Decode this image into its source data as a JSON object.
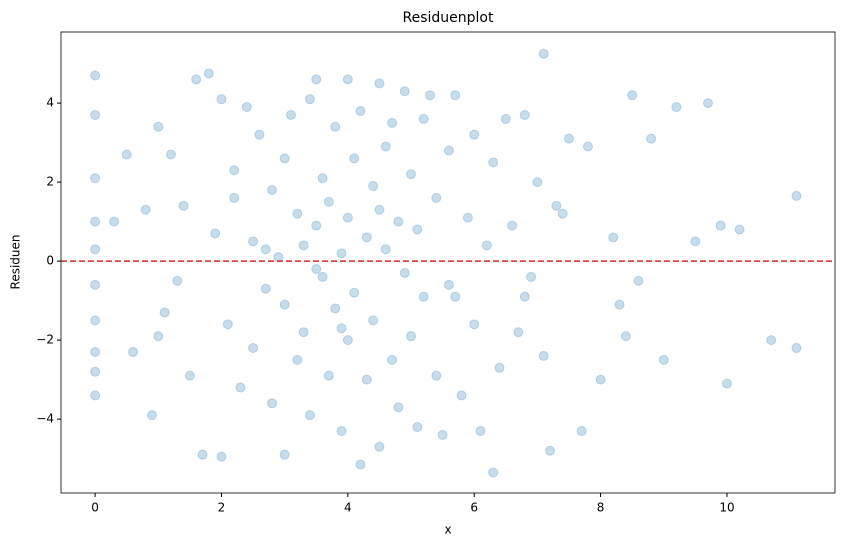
{
  "chart_data": {
    "type": "scatter",
    "title": "Residuenplot",
    "x_label": "x",
    "y_label": "Residuen",
    "x": [
      0,
      0,
      0,
      0,
      0,
      0,
      0,
      0,
      0,
      0,
      0.3,
      0.5,
      0.6,
      0.8,
      0.9,
      1.0,
      1.1,
      1.2,
      1.3,
      1.4,
      1.5,
      1.6,
      1.7,
      1.8,
      1.9,
      2.0,
      2.0,
      2.1,
      2.2,
      2.3,
      2.4,
      2.5,
      2.5,
      2.6,
      2.7,
      2.8,
      2.8,
      2.9,
      3.0,
      3.0,
      3.0,
      3.1,
      3.2,
      3.2,
      3.3,
      3.3,
      3.4,
      3.4,
      3.5,
      3.5,
      3.6,
      3.6,
      3.7,
      3.7,
      3.8,
      3.8,
      3.9,
      3.9,
      4.0,
      4.0,
      4.0,
      4.1,
      4.1,
      4.2,
      4.2,
      4.3,
      4.3,
      4.4,
      4.4,
      4.5,
      4.5,
      4.6,
      4.6,
      4.7,
      4.7,
      4.8,
      4.8,
      4.9,
      4.9,
      5.0,
      5.0,
      5.1,
      5.1,
      5.2,
      5.2,
      5.3,
      5.4,
      5.4,
      5.5,
      5.6,
      5.6,
      5.7,
      5.8,
      5.9,
      6.0,
      6.0,
      6.1,
      6.2,
      6.3,
      6.3,
      6.4,
      6.5,
      6.6,
      6.7,
      6.8,
      6.9,
      7.0,
      7.1,
      7.1,
      7.2,
      7.3,
      7.5,
      7.7,
      7.8,
      8.0,
      8.2,
      8.3,
      8.5,
      8.6,
      8.8,
      9.0,
      9.2,
      9.5,
      9.7,
      9.9,
      10.0,
      10.2,
      10.7,
      11.1,
      11.1,
      1.0,
      3.5,
      5.7,
      4.5,
      2.7,
      3.9,
      6.8,
      7.4,
      8.4,
      2.2
    ],
    "series": [
      {
        "color": "#1f77b4",
        "alpha": 0.25,
        "values": [
          4.7,
          3.7,
          2.1,
          1.0,
          0.3,
          -0.6,
          -1.5,
          -2.3,
          -2.8,
          -3.4,
          1.0,
          2.7,
          -2.3,
          1.3,
          -3.9,
          3.4,
          -1.3,
          2.7,
          -0.5,
          1.4,
          -2.9,
          4.6,
          -4.9,
          4.75,
          0.7,
          -4.95,
          4.1,
          -1.6,
          2.3,
          -3.2,
          3.9,
          0.5,
          -2.2,
          3.2,
          -0.7,
          1.8,
          -3.6,
          0.1,
          2.6,
          -1.1,
          -4.9,
          3.7,
          1.2,
          -2.5,
          0.4,
          -1.8,
          4.1,
          -3.9,
          4.6,
          0.9,
          -0.4,
          2.1,
          -2.9,
          1.5,
          3.4,
          -1.2,
          0.2,
          -4.3,
          4.6,
          1.1,
          -2.0,
          2.6,
          -0.8,
          -5.15,
          3.8,
          0.6,
          -3.0,
          1.9,
          -1.5,
          4.5,
          -4.7,
          0.3,
          2.9,
          -2.5,
          3.5,
          1.0,
          -3.7,
          4.3,
          -0.3,
          2.2,
          -1.9,
          0.8,
          -4.2,
          3.6,
          -0.9,
          4.2,
          -2.9,
          1.6,
          -4.4,
          2.8,
          -0.6,
          4.2,
          -3.4,
          1.1,
          3.2,
          -1.6,
          -4.3,
          0.4,
          -5.35,
          2.5,
          -2.7,
          3.6,
          0.9,
          -1.8,
          3.7,
          -0.4,
          2.0,
          5.25,
          -2.4,
          -4.8,
          1.4,
          3.1,
          -4.3,
          2.9,
          -3.0,
          0.6,
          -1.1,
          4.2,
          -0.5,
          3.1,
          -2.5,
          3.9,
          0.5,
          4.0,
          0.9,
          -3.1,
          0.8,
          -2.0,
          1.65,
          -2.2,
          -1.9,
          -0.2,
          -0.9,
          1.3,
          0.3,
          -1.7,
          -0.9,
          1.2,
          -1.9,
          1.6
        ]
      }
    ],
    "hline": {
      "y": 0,
      "color": "#d62728"
    },
    "xlim": [
      -0.54,
      11.71
    ],
    "ylim": [
      -5.87,
      5.8
    ],
    "xticks": [
      0,
      2,
      4,
      6,
      8,
      10
    ],
    "yticks": [
      {
        "value": -4,
        "label": "−4"
      },
      {
        "value": -2,
        "label": "−2"
      },
      0,
      2,
      4
    ]
  }
}
